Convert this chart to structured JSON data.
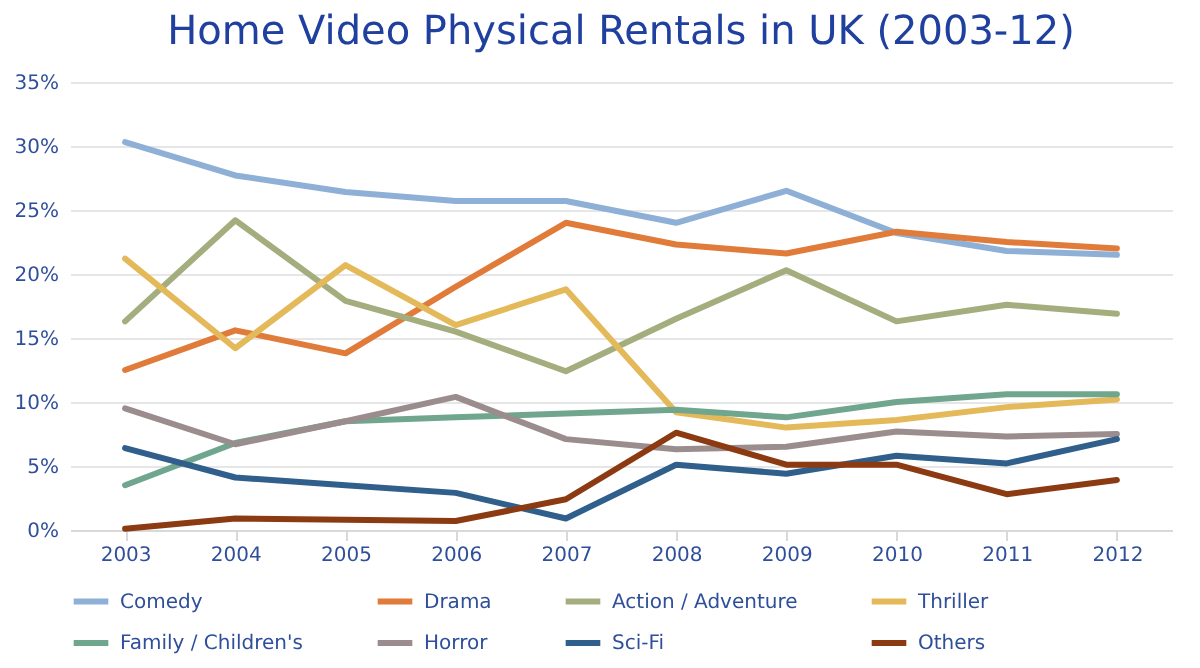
{
  "chart_data": {
    "type": "line",
    "title": "Home Video Physical Rentals in UK (2003-12)",
    "categories": [
      "2003",
      "2004",
      "2005",
      "2006",
      "2007",
      "2008",
      "2009",
      "2010",
      "2011",
      "2012"
    ],
    "series": [
      {
        "name": "Comedy",
        "color": "#8fb0d6",
        "values": [
          30.3,
          27.7,
          26.4,
          25.7,
          25.7,
          24.0,
          26.5,
          23.2,
          21.8,
          21.5
        ]
      },
      {
        "name": "Drama",
        "color": "#e07b39",
        "values": [
          12.5,
          15.6,
          13.8,
          19.0,
          24.0,
          22.3,
          21.6,
          23.3,
          22.5,
          22.0
        ]
      },
      {
        "name": "Action / Adventure",
        "color": "#a3ad7e",
        "values": [
          16.3,
          24.2,
          17.9,
          15.5,
          12.4,
          16.5,
          20.3,
          16.3,
          17.6,
          16.9
        ]
      },
      {
        "name": "Thriller",
        "color": "#e3b95a",
        "values": [
          21.2,
          14.2,
          20.7,
          16.0,
          18.8,
          9.2,
          8.0,
          8.6,
          9.6,
          10.2
        ]
      },
      {
        "name": "Family / Children's",
        "color": "#70a58e",
        "values": [
          3.5,
          6.8,
          8.5,
          8.8,
          9.1,
          9.4,
          8.8,
          10.0,
          10.6,
          10.6
        ]
      },
      {
        "name": "Horror",
        "color": "#9b8d8d",
        "values": [
          9.5,
          6.7,
          8.5,
          10.4,
          7.1,
          6.3,
          6.5,
          7.7,
          7.3,
          7.5
        ]
      },
      {
        "name": "Sci-Fi",
        "color": "#2f5f8a",
        "values": [
          6.4,
          4.1,
          3.5,
          2.9,
          0.9,
          5.1,
          4.4,
          5.8,
          5.2,
          7.1
        ]
      },
      {
        "name": "Others",
        "color": "#8b3a12",
        "values": [
          0.1,
          0.9,
          0.8,
          0.7,
          2.4,
          7.6,
          5.1,
          5.1,
          2.8,
          3.9
        ]
      }
    ],
    "ylim": [
      0,
      35
    ],
    "yticks": [
      {
        "value": 0,
        "label": "0%"
      },
      {
        "value": 5,
        "label": "5%"
      },
      {
        "value": 10,
        "label": "10%"
      },
      {
        "value": 15,
        "label": "15%"
      },
      {
        "value": 20,
        "label": "20%"
      },
      {
        "value": 25,
        "label": "25%"
      },
      {
        "value": 30,
        "label": "30%"
      },
      {
        "value": 35,
        "label": "35%"
      }
    ],
    "grid": "y",
    "legend": "bottom",
    "marker": "none",
    "line_style": "solid"
  }
}
